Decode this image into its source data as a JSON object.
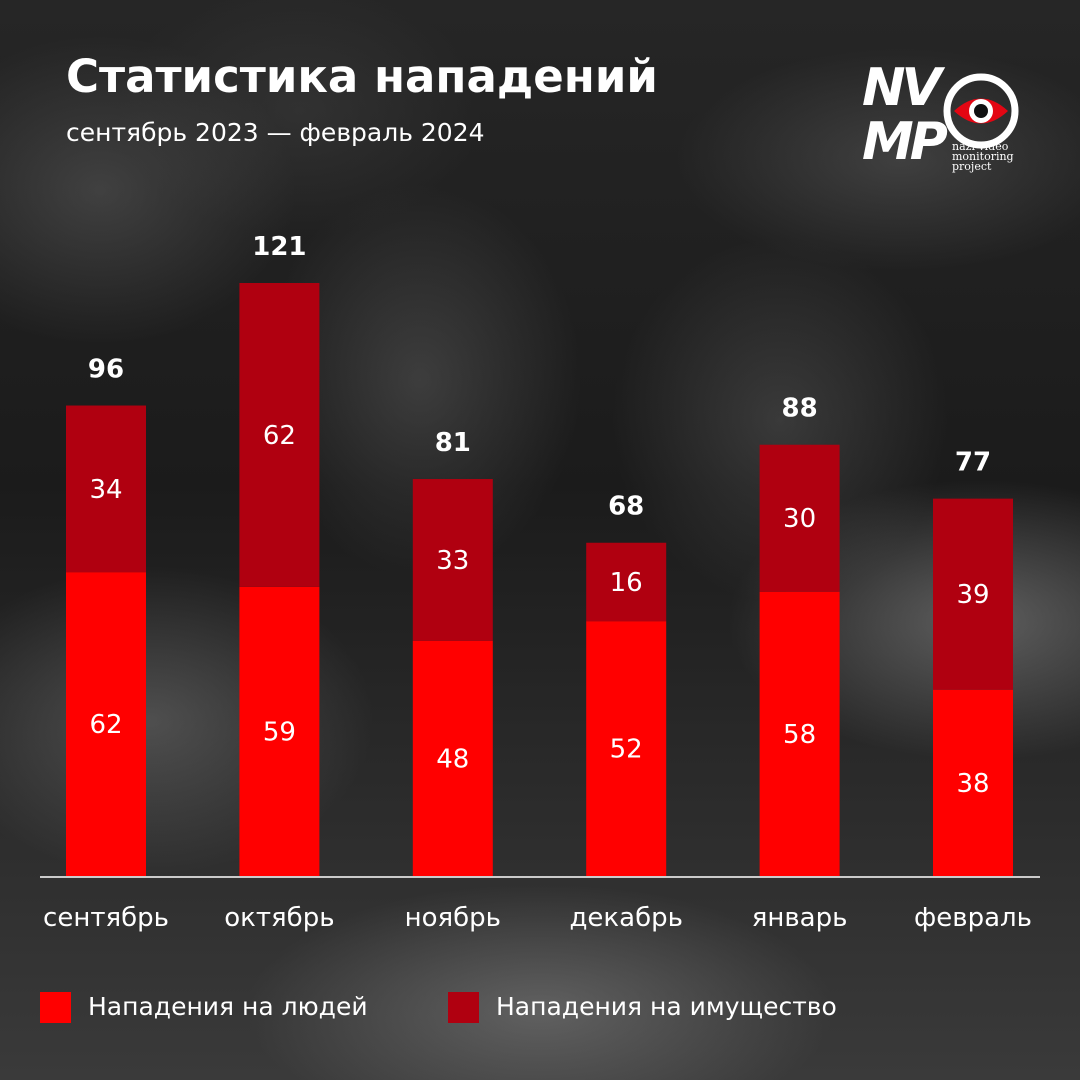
{
  "header": {
    "title": "Статистика нападений",
    "subtitle": "сентябрь 2023 — февраль 2024"
  },
  "logo": {
    "line1": "NV",
    "line2": "MP",
    "tagline_1": "nazi video",
    "tagline_2": "monitoring",
    "tagline_3": "project",
    "accent": "#e30613"
  },
  "colors": {
    "people": "#ff0000",
    "property": "#b00010",
    "axis": "#ffffff",
    "text": "#ffffff"
  },
  "chart_data": {
    "type": "bar",
    "stacked": true,
    "categories": [
      "сентябрь",
      "октябрь",
      "ноябрь",
      "декабрь",
      "январь",
      "февраль"
    ],
    "series": [
      {
        "name": "Нападения на людей",
        "values": [
          62,
          59,
          48,
          52,
          58,
          38
        ]
      },
      {
        "name": "Нападения на имущество",
        "values": [
          34,
          62,
          33,
          16,
          30,
          39
        ]
      }
    ],
    "totals": [
      96,
      121,
      81,
      68,
      88,
      77
    ],
    "title": "Статистика нападений",
    "subtitle": "сентябрь 2023 — февраль 2024",
    "xlabel": "",
    "ylabel": "",
    "ylim": [
      0,
      121
    ],
    "grid": false,
    "legend": "bottom-left"
  }
}
